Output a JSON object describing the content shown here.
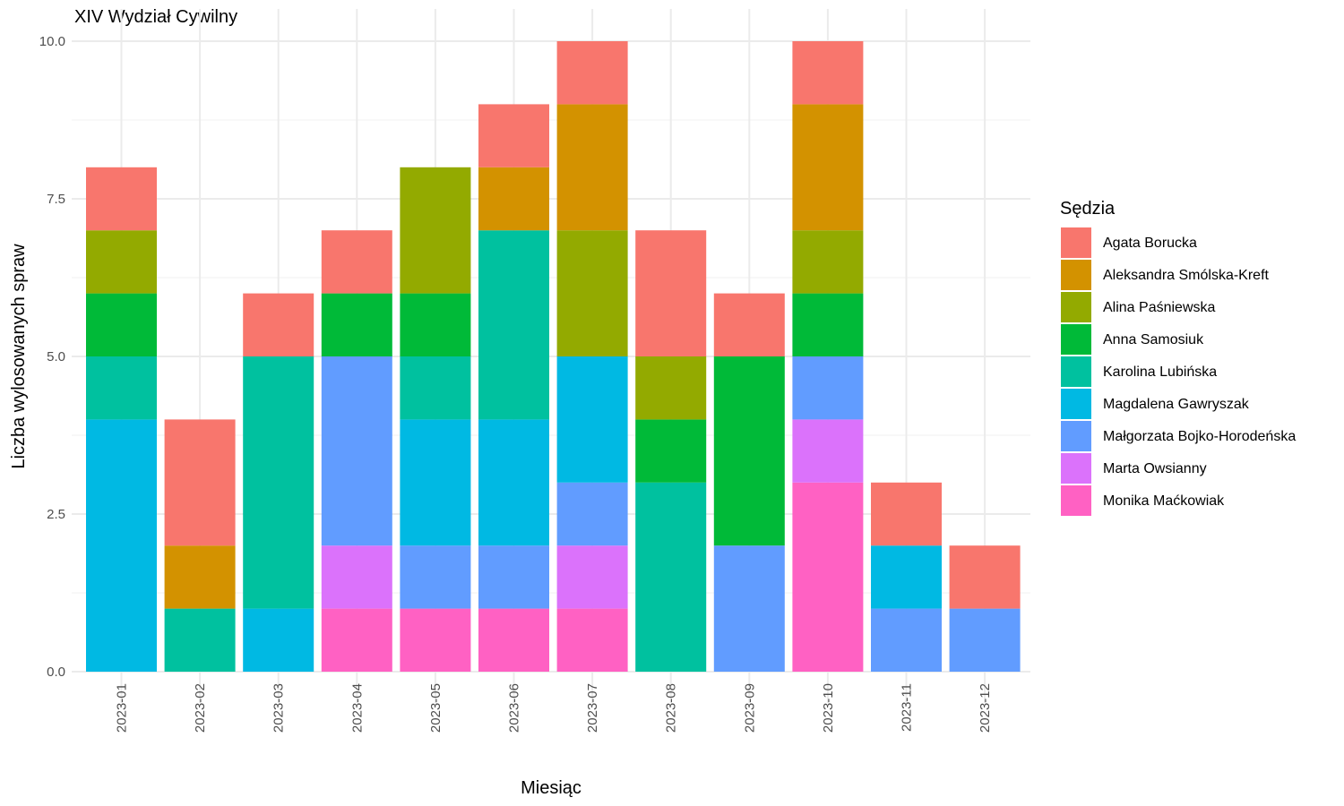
{
  "chart_data": {
    "type": "bar",
    "stacked": true,
    "title": "XIV Wydział Cywilny",
    "xlabel": "Miesiąc",
    "ylabel": "Liczba wylosowanych spraw",
    "ylim": [
      0,
      10
    ],
    "yticks": [
      "0.0",
      "2.5",
      "5.0",
      "7.5",
      "10.0"
    ],
    "grid": true,
    "legend_position": "right",
    "legend_title": "Sędzia",
    "categories": [
      "2023-01",
      "2023-02",
      "2023-03",
      "2023-04",
      "2023-05",
      "2023-06",
      "2023-07",
      "2023-08",
      "2023-09",
      "2023-10",
      "2023-11",
      "2023-12"
    ],
    "series": [
      {
        "name": "Agata Borucka",
        "color": "#F8766D",
        "values": [
          1,
          2,
          1,
          1,
          0,
          1,
          1,
          2,
          1,
          1,
          1,
          1
        ]
      },
      {
        "name": "Aleksandra Smólska-Kreft",
        "color": "#D39200",
        "values": [
          0,
          1,
          0,
          0,
          0,
          1,
          2,
          0,
          0,
          2,
          0,
          0
        ]
      },
      {
        "name": "Alina Paśniewska",
        "color": "#93AA00",
        "values": [
          1,
          0,
          0,
          0,
          2,
          0,
          2,
          1,
          0,
          1,
          0,
          0
        ]
      },
      {
        "name": "Anna Samosiuk",
        "color": "#00BA38",
        "values": [
          1,
          0,
          0,
          1,
          1,
          0,
          0,
          1,
          3,
          1,
          0,
          0
        ]
      },
      {
        "name": "Karolina Lubińska",
        "color": "#00C19F",
        "values": [
          1,
          1,
          4,
          0,
          1,
          3,
          0,
          3,
          0,
          0,
          0,
          0
        ]
      },
      {
        "name": "Magdalena Gawryszak",
        "color": "#00B9E3",
        "values": [
          4,
          0,
          1,
          0,
          2,
          2,
          2,
          0,
          0,
          0,
          1,
          0
        ]
      },
      {
        "name": "Małgorzata Bojko-Horodeńska",
        "color": "#619CFF",
        "values": [
          0,
          0,
          0,
          3,
          1,
          1,
          1,
          0,
          2,
          1,
          1,
          1
        ]
      },
      {
        "name": "Marta Owsianny",
        "color": "#DB72FB",
        "values": [
          0,
          0,
          0,
          1,
          0,
          0,
          1,
          0,
          0,
          1,
          0,
          0
        ]
      },
      {
        "name": "Monika Maćkowiak",
        "color": "#FF61C3",
        "values": [
          0,
          0,
          0,
          1,
          1,
          1,
          1,
          0,
          0,
          3,
          0,
          0
        ]
      }
    ]
  }
}
